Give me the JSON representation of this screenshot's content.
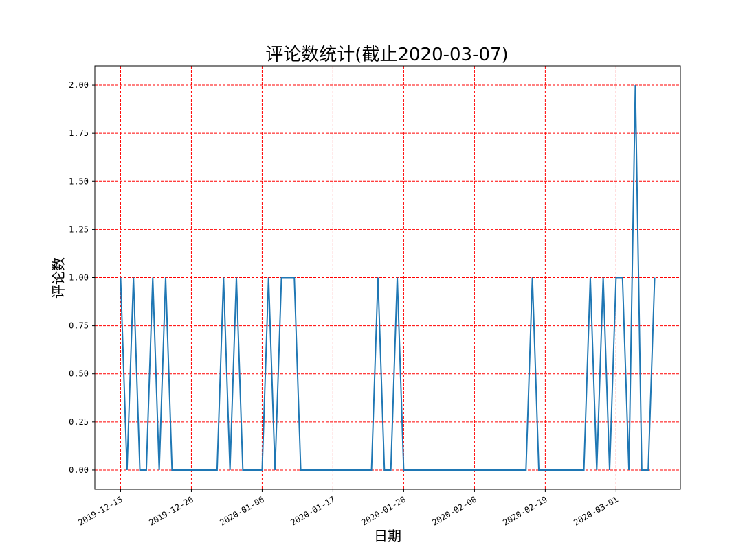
{
  "chart_data": {
    "type": "line",
    "title": "评论数统计(截止2020-03-07)",
    "xlabel": "日期",
    "ylabel": "评论数",
    "x_start": "2019-12-15",
    "x_end": "2020-03-07",
    "xlim": [
      "2019-12-11",
      "2020-03-11"
    ],
    "ylim": [
      -0.1,
      2.1
    ],
    "x_ticks": [
      "2019-12-15",
      "2019-12-26",
      "2020-01-06",
      "2020-01-17",
      "2020-01-28",
      "2020-02-08",
      "2020-02-19",
      "2020-03-01"
    ],
    "y_ticks": [
      "0.00",
      "0.25",
      "0.50",
      "0.75",
      "1.00",
      "1.25",
      "1.50",
      "1.75",
      "2.00"
    ],
    "grid": true,
    "grid_color": "#ff0000",
    "line_color": "#1f77b4",
    "values": [
      1,
      0,
      1,
      0,
      0,
      1,
      0,
      1,
      0,
      0,
      0,
      0,
      0,
      0,
      0,
      0,
      1,
      0,
      1,
      0,
      0,
      0,
      0,
      1,
      0,
      1,
      1,
      1,
      0,
      0,
      0,
      0,
      0,
      0,
      0,
      0,
      0,
      0,
      0,
      0,
      1,
      0,
      0,
      1,
      0,
      0,
      0,
      0,
      0,
      0,
      0,
      0,
      0,
      0,
      0,
      0,
      0,
      0,
      0,
      0,
      0,
      0,
      0,
      0,
      1,
      0,
      0,
      0,
      0,
      0,
      0,
      0,
      0,
      1,
      0,
      1,
      0,
      1,
      1,
      0,
      2,
      0,
      0,
      1
    ]
  }
}
